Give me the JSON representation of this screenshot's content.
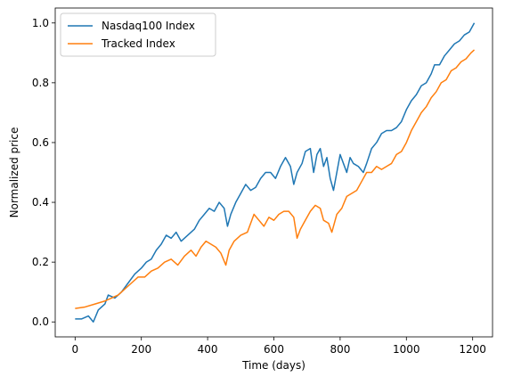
{
  "chart_data": {
    "type": "line",
    "title": "",
    "xlabel": "Time (days)",
    "ylabel": "Normalized price",
    "xlim": [
      -60,
      1260
    ],
    "ylim": [
      -0.05,
      1.05
    ],
    "xticks": [
      0,
      200,
      400,
      600,
      800,
      1000,
      1200
    ],
    "yticks": [
      0.0,
      0.2,
      0.4,
      0.6,
      0.8,
      1.0
    ],
    "xtick_labels": [
      "0",
      "200",
      "400",
      "600",
      "800",
      "1000",
      "1200"
    ],
    "ytick_labels": [
      "0.0",
      "0.2",
      "0.4",
      "0.6",
      "0.8",
      "1.0"
    ],
    "grid": false,
    "legend_position": "top-left",
    "series": [
      {
        "name": "Nasdaq100 Index",
        "color": "#1f77b4",
        "points": [
          [
            0,
            0.01
          ],
          [
            20,
            0.01
          ],
          [
            40,
            0.02
          ],
          [
            55,
            0.0
          ],
          [
            70,
            0.04
          ],
          [
            90,
            0.06
          ],
          [
            100,
            0.09
          ],
          [
            120,
            0.08
          ],
          [
            140,
            0.1
          ],
          [
            160,
            0.13
          ],
          [
            180,
            0.16
          ],
          [
            200,
            0.18
          ],
          [
            215,
            0.2
          ],
          [
            230,
            0.21
          ],
          [
            245,
            0.24
          ],
          [
            260,
            0.26
          ],
          [
            275,
            0.29
          ],
          [
            290,
            0.28
          ],
          [
            305,
            0.3
          ],
          [
            320,
            0.27
          ],
          [
            340,
            0.29
          ],
          [
            360,
            0.31
          ],
          [
            375,
            0.34
          ],
          [
            390,
            0.36
          ],
          [
            405,
            0.38
          ],
          [
            420,
            0.37
          ],
          [
            435,
            0.4
          ],
          [
            450,
            0.38
          ],
          [
            460,
            0.32
          ],
          [
            470,
            0.36
          ],
          [
            485,
            0.4
          ],
          [
            500,
            0.43
          ],
          [
            515,
            0.46
          ],
          [
            530,
            0.44
          ],
          [
            545,
            0.45
          ],
          [
            560,
            0.48
          ],
          [
            575,
            0.5
          ],
          [
            590,
            0.5
          ],
          [
            605,
            0.48
          ],
          [
            620,
            0.52
          ],
          [
            635,
            0.55
          ],
          [
            650,
            0.52
          ],
          [
            660,
            0.46
          ],
          [
            670,
            0.5
          ],
          [
            685,
            0.53
          ],
          [
            695,
            0.57
          ],
          [
            710,
            0.58
          ],
          [
            720,
            0.5
          ],
          [
            730,
            0.56
          ],
          [
            740,
            0.58
          ],
          [
            750,
            0.52
          ],
          [
            760,
            0.55
          ],
          [
            770,
            0.48
          ],
          [
            780,
            0.44
          ],
          [
            790,
            0.5
          ],
          [
            800,
            0.56
          ],
          [
            810,
            0.53
          ],
          [
            820,
            0.5
          ],
          [
            830,
            0.55
          ],
          [
            840,
            0.53
          ],
          [
            855,
            0.52
          ],
          [
            870,
            0.5
          ],
          [
            880,
            0.53
          ],
          [
            895,
            0.58
          ],
          [
            910,
            0.6
          ],
          [
            925,
            0.63
          ],
          [
            940,
            0.64
          ],
          [
            955,
            0.64
          ],
          [
            970,
            0.65
          ],
          [
            985,
            0.67
          ],
          [
            1000,
            0.71
          ],
          [
            1015,
            0.74
          ],
          [
            1030,
            0.76
          ],
          [
            1045,
            0.79
          ],
          [
            1060,
            0.8
          ],
          [
            1075,
            0.83
          ],
          [
            1085,
            0.86
          ],
          [
            1100,
            0.86
          ],
          [
            1115,
            0.89
          ],
          [
            1130,
            0.91
          ],
          [
            1145,
            0.93
          ],
          [
            1160,
            0.94
          ],
          [
            1175,
            0.96
          ],
          [
            1190,
            0.97
          ],
          [
            1205,
            1.0
          ]
        ]
      },
      {
        "name": "Tracked Index",
        "color": "#ff7f0e",
        "points": [
          [
            0,
            0.045
          ],
          [
            30,
            0.05
          ],
          [
            60,
            0.06
          ],
          [
            90,
            0.07
          ],
          [
            110,
            0.08
          ],
          [
            130,
            0.09
          ],
          [
            150,
            0.11
          ],
          [
            170,
            0.13
          ],
          [
            190,
            0.15
          ],
          [
            210,
            0.15
          ],
          [
            230,
            0.17
          ],
          [
            250,
            0.18
          ],
          [
            270,
            0.2
          ],
          [
            290,
            0.21
          ],
          [
            310,
            0.19
          ],
          [
            330,
            0.22
          ],
          [
            350,
            0.24
          ],
          [
            365,
            0.22
          ],
          [
            380,
            0.25
          ],
          [
            395,
            0.27
          ],
          [
            410,
            0.26
          ],
          [
            425,
            0.25
          ],
          [
            440,
            0.23
          ],
          [
            455,
            0.19
          ],
          [
            465,
            0.24
          ],
          [
            480,
            0.27
          ],
          [
            500,
            0.29
          ],
          [
            520,
            0.3
          ],
          [
            540,
            0.36
          ],
          [
            555,
            0.34
          ],
          [
            570,
            0.32
          ],
          [
            585,
            0.35
          ],
          [
            600,
            0.34
          ],
          [
            615,
            0.36
          ],
          [
            630,
            0.37
          ],
          [
            645,
            0.37
          ],
          [
            660,
            0.35
          ],
          [
            670,
            0.28
          ],
          [
            680,
            0.31
          ],
          [
            695,
            0.34
          ],
          [
            710,
            0.37
          ],
          [
            725,
            0.39
          ],
          [
            740,
            0.38
          ],
          [
            750,
            0.34
          ],
          [
            765,
            0.33
          ],
          [
            775,
            0.3
          ],
          [
            790,
            0.36
          ],
          [
            805,
            0.38
          ],
          [
            820,
            0.42
          ],
          [
            835,
            0.43
          ],
          [
            850,
            0.44
          ],
          [
            865,
            0.47
          ],
          [
            880,
            0.5
          ],
          [
            895,
            0.5
          ],
          [
            910,
            0.52
          ],
          [
            925,
            0.51
          ],
          [
            940,
            0.52
          ],
          [
            955,
            0.53
          ],
          [
            970,
            0.56
          ],
          [
            985,
            0.57
          ],
          [
            1000,
            0.6
          ],
          [
            1015,
            0.64
          ],
          [
            1030,
            0.67
          ],
          [
            1045,
            0.7
          ],
          [
            1060,
            0.72
          ],
          [
            1075,
            0.75
          ],
          [
            1090,
            0.77
          ],
          [
            1105,
            0.8
          ],
          [
            1120,
            0.81
          ],
          [
            1135,
            0.84
          ],
          [
            1150,
            0.85
          ],
          [
            1165,
            0.87
          ],
          [
            1180,
            0.88
          ],
          [
            1195,
            0.9
          ],
          [
            1205,
            0.91
          ]
        ]
      }
    ]
  }
}
